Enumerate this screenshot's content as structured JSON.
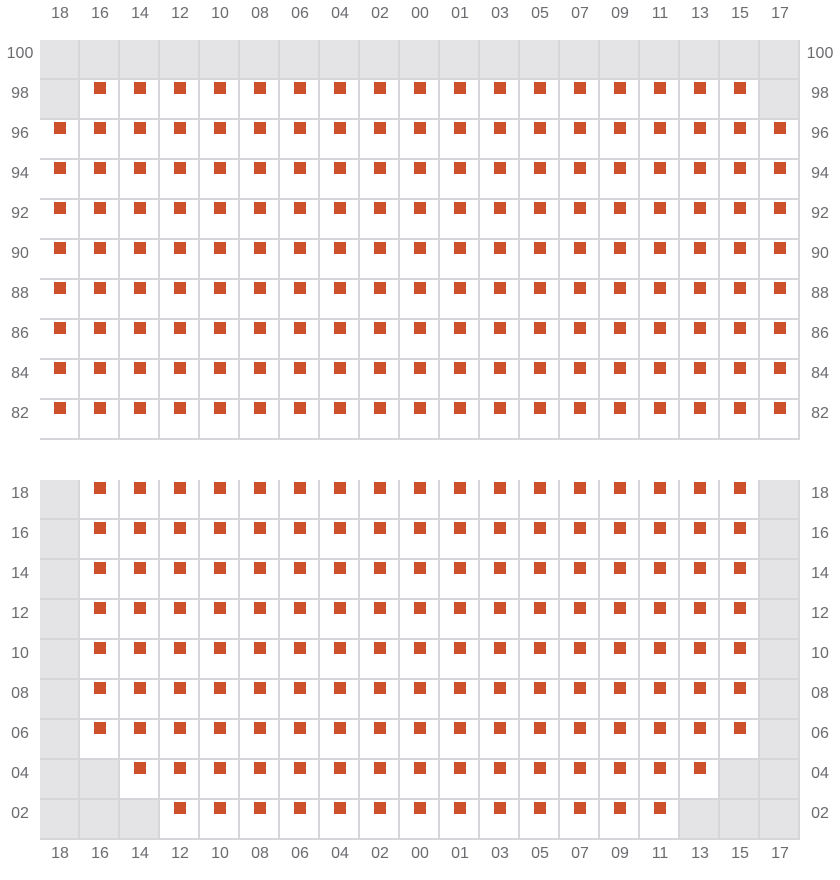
{
  "columns": [
    "18",
    "16",
    "14",
    "12",
    "10",
    "08",
    "06",
    "04",
    "02",
    "00",
    "01",
    "03",
    "05",
    "07",
    "09",
    "11",
    "13",
    "15",
    "17"
  ],
  "colors": {
    "seat": "#cd4f2b",
    "unavailable": "#e4e4e7",
    "grid": "#d6d6da",
    "label": "#6b6b70"
  },
  "sections": [
    {
      "name": "upper",
      "rows": [
        {
          "label": "100",
          "seats": []
        },
        {
          "label": "98",
          "seats": [
            "16",
            "14",
            "12",
            "10",
            "08",
            "06",
            "04",
            "02",
            "00",
            "01",
            "03",
            "05",
            "07",
            "09",
            "11",
            "13",
            "15"
          ]
        },
        {
          "label": "96",
          "seats": "all"
        },
        {
          "label": "94",
          "seats": "all"
        },
        {
          "label": "92",
          "seats": "all"
        },
        {
          "label": "90",
          "seats": "all"
        },
        {
          "label": "88",
          "seats": "all"
        },
        {
          "label": "86",
          "seats": "all"
        },
        {
          "label": "84",
          "seats": "all"
        },
        {
          "label": "82",
          "seats": "all"
        }
      ]
    },
    {
      "name": "lower",
      "rows": [
        {
          "label": "18",
          "seats": [
            "16",
            "14",
            "12",
            "10",
            "08",
            "06",
            "04",
            "02",
            "00",
            "01",
            "03",
            "05",
            "07",
            "09",
            "11",
            "13",
            "15"
          ]
        },
        {
          "label": "16",
          "seats": [
            "16",
            "14",
            "12",
            "10",
            "08",
            "06",
            "04",
            "02",
            "00",
            "01",
            "03",
            "05",
            "07",
            "09",
            "11",
            "13",
            "15"
          ]
        },
        {
          "label": "14",
          "seats": [
            "16",
            "14",
            "12",
            "10",
            "08",
            "06",
            "04",
            "02",
            "00",
            "01",
            "03",
            "05",
            "07",
            "09",
            "11",
            "13",
            "15"
          ]
        },
        {
          "label": "12",
          "seats": [
            "16",
            "14",
            "12",
            "10",
            "08",
            "06",
            "04",
            "02",
            "00",
            "01",
            "03",
            "05",
            "07",
            "09",
            "11",
            "13",
            "15"
          ]
        },
        {
          "label": "10",
          "seats": [
            "16",
            "14",
            "12",
            "10",
            "08",
            "06",
            "04",
            "02",
            "00",
            "01",
            "03",
            "05",
            "07",
            "09",
            "11",
            "13",
            "15"
          ]
        },
        {
          "label": "08",
          "seats": [
            "16",
            "14",
            "12",
            "10",
            "08",
            "06",
            "04",
            "02",
            "00",
            "01",
            "03",
            "05",
            "07",
            "09",
            "11",
            "13",
            "15"
          ]
        },
        {
          "label": "06",
          "seats": [
            "16",
            "14",
            "12",
            "10",
            "08",
            "06",
            "04",
            "02",
            "00",
            "01",
            "03",
            "05",
            "07",
            "09",
            "11",
            "13",
            "15"
          ]
        },
        {
          "label": "04",
          "seats": [
            "14",
            "12",
            "10",
            "08",
            "06",
            "04",
            "02",
            "00",
            "01",
            "03",
            "05",
            "07",
            "09",
            "11",
            "13"
          ]
        },
        {
          "label": "02",
          "seats": [
            "12",
            "10",
            "08",
            "06",
            "04",
            "02",
            "00",
            "01",
            "03",
            "05",
            "07",
            "09",
            "11"
          ]
        }
      ]
    }
  ]
}
